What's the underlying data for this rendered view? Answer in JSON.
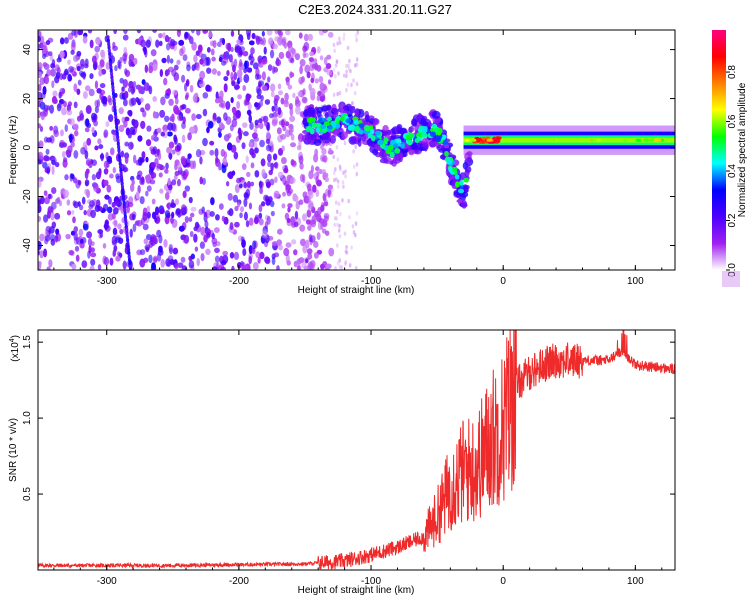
{
  "page": {
    "title": "C2E3.2024.331.20.11.G27"
  },
  "chart_data": [
    {
      "type": "heatmap",
      "xlabel": "Height of straight line (km)",
      "ylabel": "Frequency (Hz)",
      "xlim": [
        -352,
        130
      ],
      "ylim": [
        -50,
        48
      ],
      "xticks": [
        -300,
        -200,
        -100,
        0,
        100
      ],
      "yticks": [
        -40,
        -20,
        0,
        20,
        40
      ],
      "colorbar": {
        "label": "Normalized spectral amplitude",
        "range": [
          0,
          0.97
        ],
        "ticks": [
          0.0,
          0.2,
          0.4,
          0.6,
          0.8
        ],
        "tick_labels": [
          "0.0",
          "0.2",
          "0.4",
          "0.6",
          "0.8"
        ],
        "colors": [
          "#ffffff",
          "#a020f0",
          "#4b00ff",
          "#0000ff",
          "#00ffff",
          "#00ff00",
          "#ffff00",
          "#ff8000",
          "#ff0000",
          "#ff0080"
        ]
      },
      "features": [
        {
          "name": "noise field",
          "x": [
            -352,
            -130
          ],
          "y": [
            -50,
            48
          ],
          "amplitude": 0.15
        },
        {
          "name": "streak",
          "x": [
            -299,
            -282
          ],
          "y": [
            45,
            -50
          ],
          "amplitude": 0.25
        },
        {
          "name": "signal cluster",
          "x": [
            -150,
            -20
          ],
          "y": [
            -20,
            20
          ],
          "amplitude": 0.5
        },
        {
          "name": "stable tone",
          "x": [
            -30,
            130
          ],
          "y": [
            1,
            5
          ],
          "amplitude": 0.6
        }
      ]
    },
    {
      "type": "line",
      "xlabel": "Height of straight line (km)",
      "ylabel": "SNR (10 * v/v)",
      "yscale_label": "(x10^4)",
      "scale_base": "(x10",
      "scale_exp": "4",
      "scale_close": ")",
      "xlim": [
        -352,
        130
      ],
      "ylim": [
        0,
        1.58
      ],
      "xticks": [
        -300,
        -200,
        -100,
        0,
        100
      ],
      "yticks": [
        0.5,
        1.0,
        1.5
      ],
      "ytick_labels": [
        "0.5",
        "1.0",
        "1.5"
      ],
      "series": [
        {
          "color": "#ee2a2a",
          "x": [
            -352,
            -300,
            -250,
            -200,
            -150,
            -120,
            -100,
            -80,
            -60,
            -50,
            -40,
            -30,
            -20,
            -10,
            0,
            10,
            20,
            30,
            40,
            60,
            80,
            90,
            100,
            130
          ],
          "y": [
            0.03,
            0.03,
            0.03,
            0.035,
            0.04,
            0.06,
            0.1,
            0.15,
            0.22,
            0.35,
            0.55,
            0.65,
            0.68,
            0.85,
            0.95,
            1.22,
            1.3,
            1.35,
            1.38,
            1.38,
            1.38,
            1.45,
            1.35,
            1.32
          ]
        }
      ]
    }
  ]
}
